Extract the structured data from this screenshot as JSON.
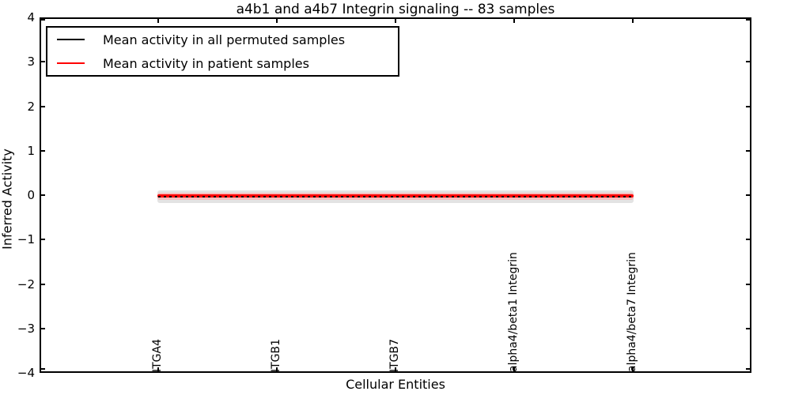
{
  "chart_data": {
    "type": "line",
    "title": "a4b1 and a4b7 Integrin signaling -- 83 samples",
    "xlabel": "Cellular Entities",
    "ylabel": "Inferred Activity",
    "xlim": [
      0,
      6
    ],
    "ylim": [
      -4,
      4
    ],
    "yticks": [
      4,
      3,
      2,
      1,
      0,
      -1,
      -2,
      -3,
      -4
    ],
    "ytick_labels": [
      "4",
      "3",
      "2",
      "1",
      "0",
      "−1",
      "−2",
      "−3",
      "−4"
    ],
    "categories": [
      "ITGA4",
      "ITGB1",
      "ITGB7",
      "alpha4/beta1 Integrin",
      "alpha4/beta7 Integrin"
    ],
    "x_positions": [
      1,
      2,
      3,
      4,
      5
    ],
    "grid": false,
    "legend_position": "upper left",
    "series": [
      {
        "name": "Mean activity in all permuted samples",
        "color": "#000000",
        "line_style": "dashed",
        "values": [
          0.0,
          0.0,
          0.0,
          0.0,
          0.0
        ],
        "band_halfwidth": 0.15,
        "band_color": "#e3e3e3"
      },
      {
        "name": "Mean activity in patient samples",
        "color": "#ff0000",
        "line_style": "solid",
        "values": [
          0.0,
          0.0,
          0.0,
          0.02,
          0.03
        ],
        "band_halfwidth": 0.08,
        "band_color": "#f5bcbc"
      }
    ]
  },
  "colors": {
    "frame": "#000000",
    "background": "#ffffff"
  }
}
